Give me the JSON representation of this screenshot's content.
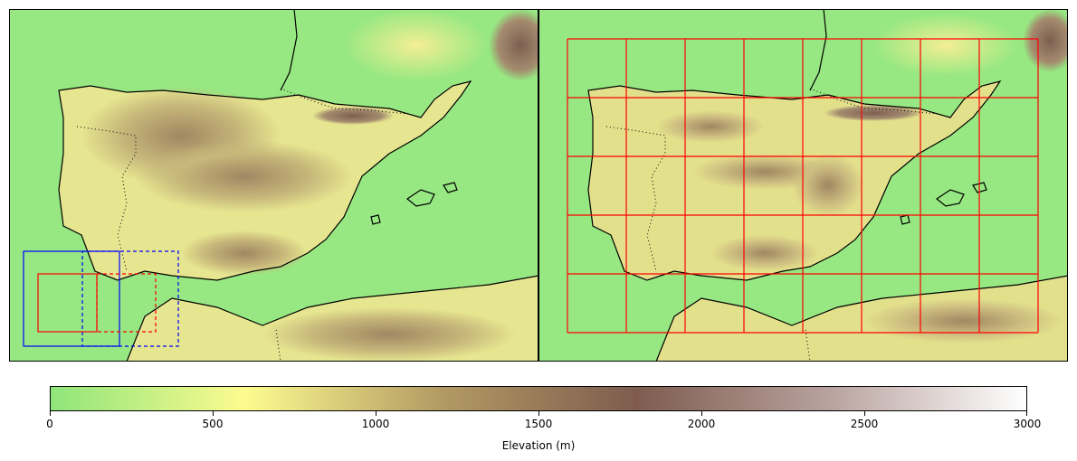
{
  "colorbar": {
    "label": "Elevation (m)",
    "min": 0,
    "max": 3000,
    "ticks": [
      "0",
      "500",
      "1000",
      "1500",
      "2000",
      "2500",
      "3000"
    ],
    "tick_values": [
      0,
      500,
      1000,
      1500,
      2000,
      2500,
      3000
    ],
    "colormap": "terrain (upper part)",
    "stops": [
      "#8fe57a",
      "#fdfb90",
      "#b39a63",
      "#7f5c4f",
      "#b9a39f",
      "#ffffff"
    ]
  },
  "colors": {
    "land_low": "#97e882",
    "coastline": "#000000",
    "grid_lines": "#ff0000",
    "domain_box": "#0000ff"
  },
  "panels": [
    {
      "name": "coarse-resolution elevation map",
      "grid_overlay": false
    },
    {
      "name": "fine-resolution elevation map with tile grid",
      "grid_overlay": true,
      "grid_columns": 8,
      "grid_rows": 5
    }
  ]
}
